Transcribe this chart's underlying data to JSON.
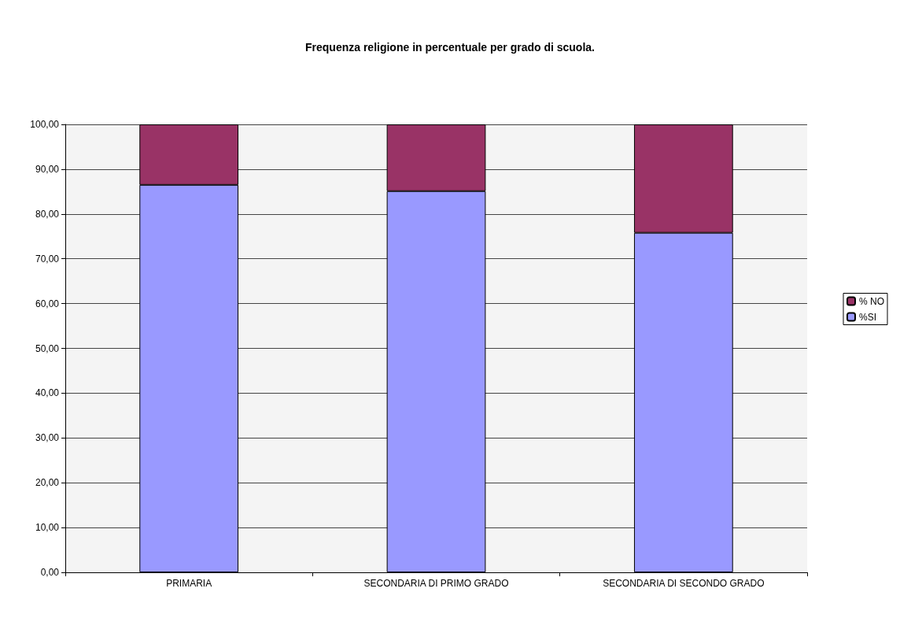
{
  "chart_data": {
    "type": "bar",
    "title": "Frequenza religione in percentuale per grado di scuola.",
    "categories": [
      "PRIMARIA",
      "SECONDARIA DI PRIMO GRADO",
      "SECONDARIA DI SECONDO GRADO"
    ],
    "stacked": true,
    "series": [
      {
        "name": "%SI",
        "color": "#9999ff",
        "values": [
          86.5,
          85.1,
          75.8
        ]
      },
      {
        "name": "% NO",
        "color": "#993366",
        "values": [
          13.5,
          14.9,
          24.2
        ]
      }
    ],
    "ylim": [
      0,
      100
    ],
    "yticks": [
      {
        "value": 0,
        "label": "0,00"
      },
      {
        "value": 10,
        "label": "10,00"
      },
      {
        "value": 20,
        "label": "20,00"
      },
      {
        "value": 30,
        "label": "30,00"
      },
      {
        "value": 40,
        "label": "40,00"
      },
      {
        "value": 50,
        "label": "50,00"
      },
      {
        "value": 60,
        "label": "60,00"
      },
      {
        "value": 70,
        "label": "70,00"
      },
      {
        "value": 80,
        "label": "80,00"
      },
      {
        "value": 90,
        "label": "90,00"
      },
      {
        "value": 100,
        "label": "100,00"
      }
    ],
    "grid": "y",
    "legend": "right"
  }
}
